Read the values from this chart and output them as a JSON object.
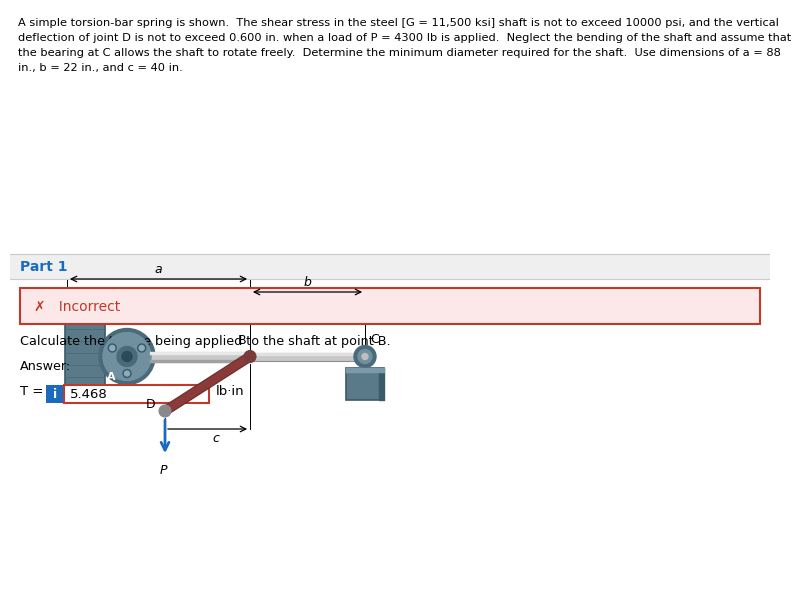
{
  "bg_color": "#ffffff",
  "part1_bg": "#efefef",
  "incorrect_box_bg": "#fce8e8",
  "incorrect_box_border": "#c0392b",
  "incorrect_text_color": "#c0392b",
  "title_color": "#000000",
  "body_text_color": "#000000",
  "T_box_bg": "#1a6bbf",
  "T_value_border": "#c0392b",
  "separator_color": "#cccccc",
  "part1_label": "Part 1",
  "incorrect_label": "✗   Incorrect",
  "question_text": "Calculate the torque being applied to the shaft at point B.",
  "answer_label": "Answer:",
  "T_label": "T = ",
  "T_value": "5.468",
  "T_unit": "lb·in",
  "title_line1": "A simple torsion-bar spring is shown.  The shear stress in the steel [G = 11,500 ksi] shaft is not to exceed 10000 psi, and the vertical",
  "title_line2": "deflection of joint D is not to exceed 0.600 in. when a load of P = 4300 lb is applied.  Neglect the bending of the shaft and assume that",
  "title_line3": "the bearing at C allows the shaft to rotate freely.  Determine the minimum diameter required for the shaft.  Use dimensions of a = 88",
  "title_line4": "in., b = 22 in., and c = 40 in."
}
